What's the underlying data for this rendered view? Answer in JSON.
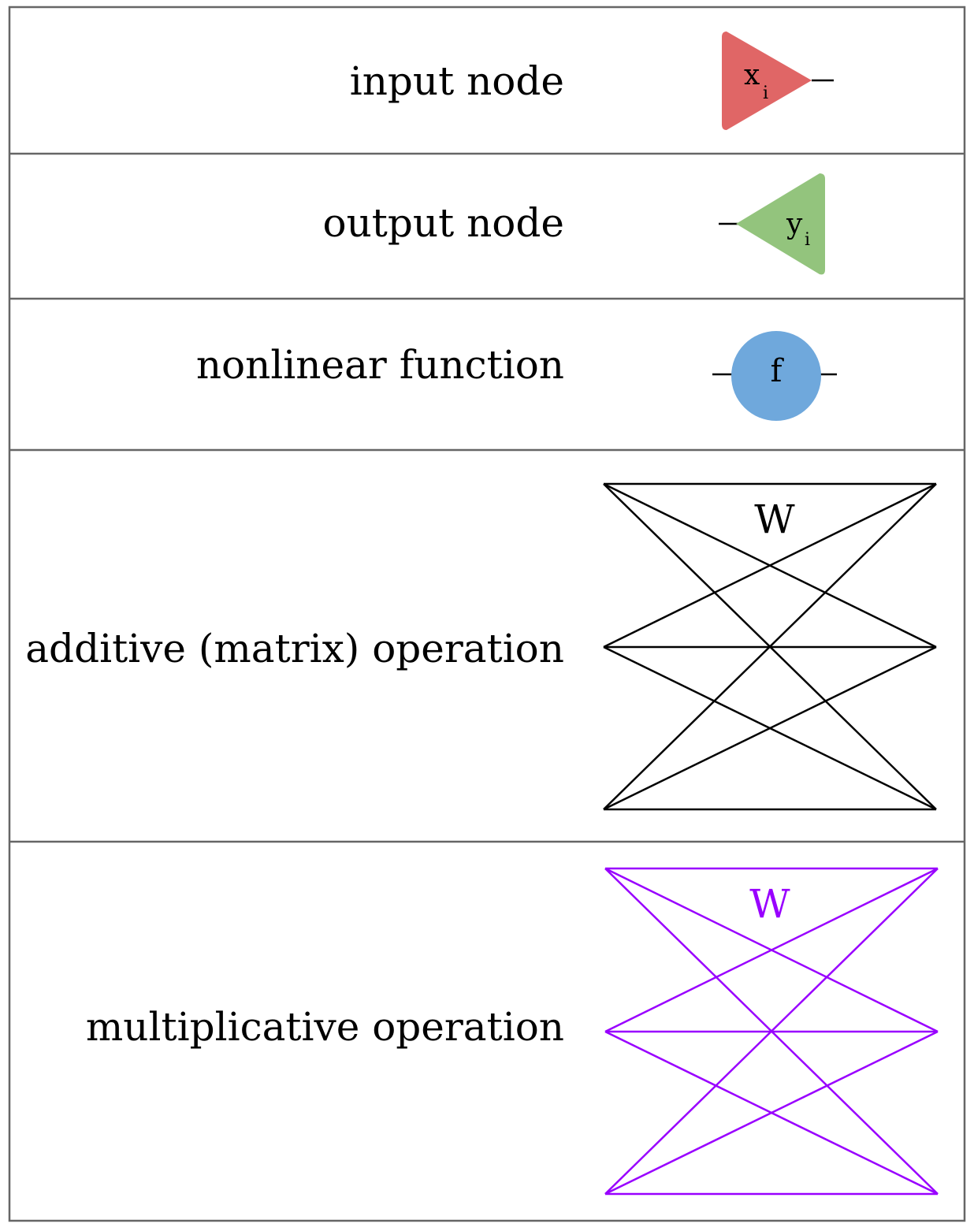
{
  "rows": [
    {
      "label": "input node",
      "symbol": "input-triangle",
      "glyph": "x",
      "subscript": "i",
      "color": "#e06666"
    },
    {
      "label": "output node",
      "symbol": "output-triangle",
      "glyph": "y",
      "subscript": "i",
      "color": "#93c47d"
    },
    {
      "label": "nonlinear function",
      "symbol": "circle",
      "glyph": "f",
      "color": "#6fa8dc"
    },
    {
      "label": "additive (matrix) operation",
      "symbol": "complete-bipartite-3x3",
      "glyph": "W",
      "color": "#000000"
    },
    {
      "label": "multiplicative operation",
      "symbol": "complete-bipartite-3x3",
      "glyph": "W",
      "color": "#9900ff"
    }
  ],
  "border_color": "#666666"
}
